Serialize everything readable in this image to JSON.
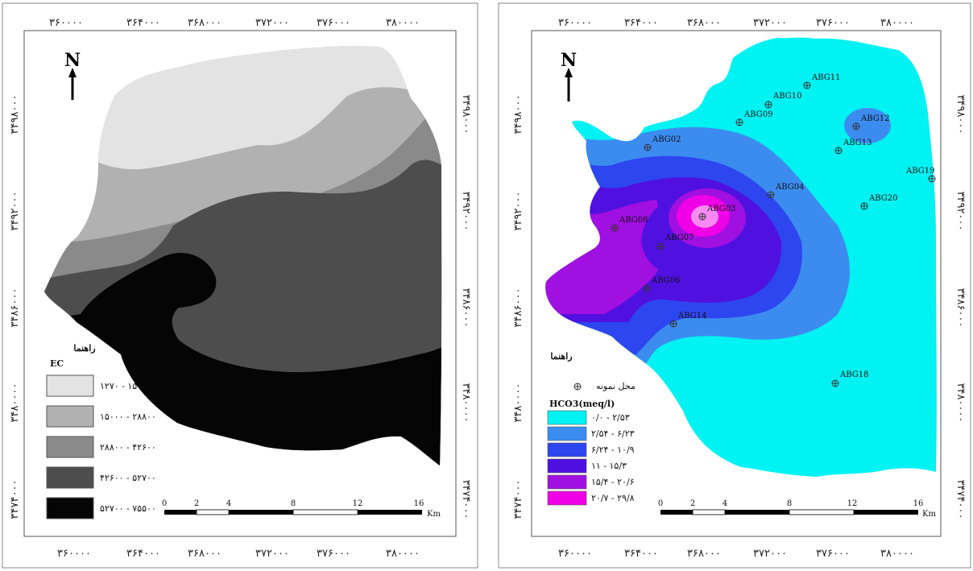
{
  "axis_labels": {
    "x_top": [
      "۳۶۰۰۰۰",
      "۳۶۴۰۰۰",
      "۳۶۸۰۰۰",
      "۳۷۲۰۰۰",
      "۳۷۶۰۰۰",
      "۳۸۰۰۰۰"
    ],
    "x_bottom": [
      "۳۶۰۰۰۰",
      "۳۶۴۰۰۰",
      "۳۶۸۰۰۰",
      "۳۷۲۰۰۰",
      "۳۷۶۰۰۰",
      "۳۸۰۰۰۰"
    ],
    "y": [
      "۳۴۹۸۰۰۰",
      "۳۴۹۲۰۰۰",
      "۳۴۸۶۰۰۰",
      "۳۴۸۰۰۰۰",
      "۳۴۷۴۰۰۰"
    ]
  },
  "north_label": "N",
  "scale_bar": {
    "ticks": [
      "0",
      "2",
      "4",
      "8",
      "12",
      "16"
    ],
    "unit": "Km"
  },
  "map_left": {
    "legend_title": "راهنما",
    "legend_subtitle": "EC",
    "classes": [
      {
        "label": "۱۲۷۰ - ۱۵۰۰۰",
        "color": "#e3e3e3"
      },
      {
        "label": "۱۵۰۰۰ - ۲۸۸۰۰",
        "color": "#b1b1b1"
      },
      {
        "label": "۲۸۸۰۰ - ۴۲۶۰۰",
        "color": "#8a8a8a"
      },
      {
        "label": "۴۲۶۰۰ - ۵۲۷۰۰",
        "color": "#4d4d4d"
      },
      {
        "label": "۵۲۷۰۰ - ۷۵۵۰۰",
        "color": "#050505"
      }
    ]
  },
  "map_right": {
    "legend_title": "راهنما",
    "sample_label": "محل نمونه",
    "legend_subtitle": "HCO3(meq/l)",
    "classes": [
      {
        "label": "۰/۰ - ۲/۵۳",
        "color": "#00f2f2"
      },
      {
        "label": "۲/۵۴ - ۶/۲۳",
        "color": "#3c8cf0"
      },
      {
        "label": "۶/۲۴ - ۱۰/۹",
        "color": "#2d46f0"
      },
      {
        "label": "۱۱ - ۱۵/۳",
        "color": "#5010e0"
      },
      {
        "label": "۱۵/۴ - ۲۰/۶",
        "color": "#a010e0"
      },
      {
        "label": "۲۰/۷ - ۲۹/۸",
        "color": "#f000e6"
      }
    ],
    "stations": [
      {
        "id": "ABG11"
      },
      {
        "id": "ABG10"
      },
      {
        "id": "ABG09"
      },
      {
        "id": "ABG12"
      },
      {
        "id": "ABG02"
      },
      {
        "id": "ABG13"
      },
      {
        "id": "ABG19"
      },
      {
        "id": "ABG04"
      },
      {
        "id": "ABG20"
      },
      {
        "id": "ABG03"
      },
      {
        "id": "ABG08"
      },
      {
        "id": "ABG07"
      },
      {
        "id": "ABG06"
      },
      {
        "id": "ABG14"
      },
      {
        "id": "ABG18"
      }
    ]
  }
}
